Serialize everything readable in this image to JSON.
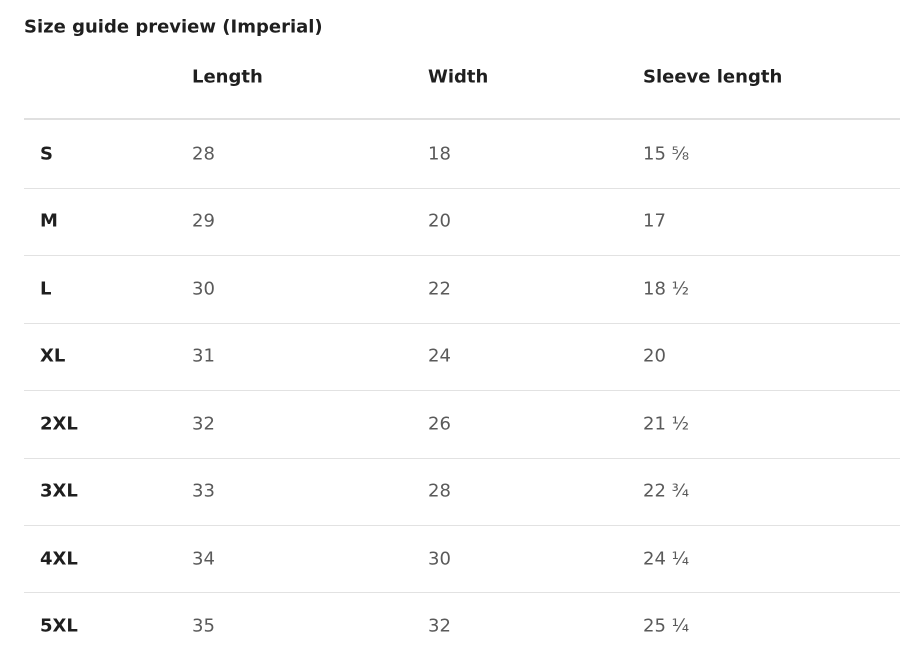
{
  "title": "Size guide preview (Imperial)",
  "table": {
    "columns": [
      "Length",
      "Width",
      "Sleeve length"
    ],
    "rows": [
      [
        "S",
        28,
        18,
        "15 ⅝"
      ],
      [
        "M",
        29,
        20,
        17
      ],
      [
        "L",
        30,
        22,
        "18 ½"
      ],
      [
        "XL",
        31,
        24,
        20
      ],
      [
        "2XL",
        32,
        26,
        "21 ½"
      ],
      [
        "3XL",
        33,
        28,
        "22 ¾"
      ],
      [
        "4XL",
        34,
        30,
        "24 ¼"
      ],
      [
        "5XL",
        35,
        32,
        "25 ¼"
      ]
    ]
  }
}
